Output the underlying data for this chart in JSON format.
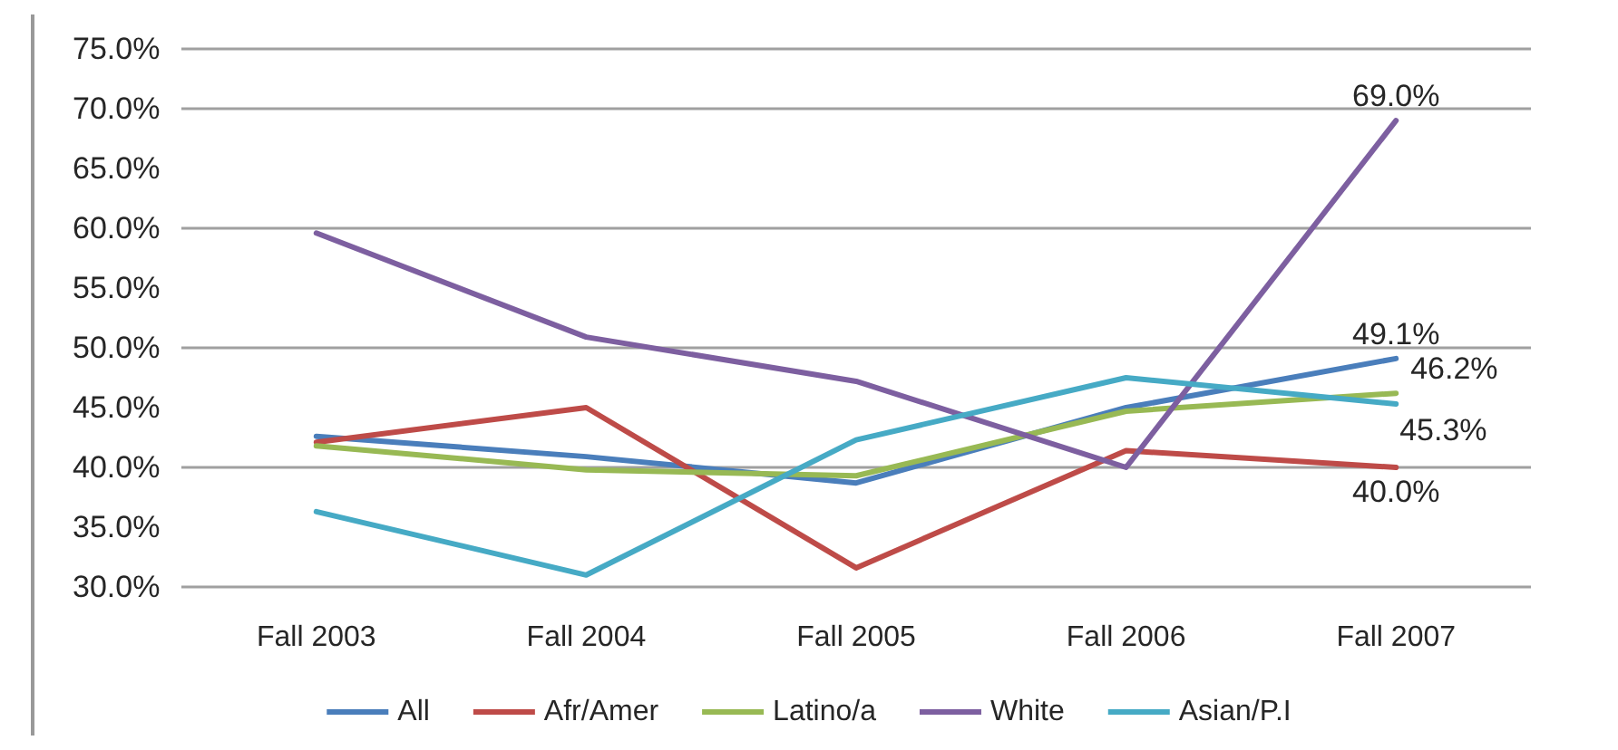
{
  "chart_data": {
    "type": "line",
    "categories": [
      "Fall 2003",
      "Fall 2004",
      "Fall 2005",
      "Fall 2006",
      "Fall 2007"
    ],
    "series": [
      {
        "name": "All",
        "color": "#4a7ebb",
        "values": [
          42.6,
          40.9,
          38.7,
          45.0,
          49.1
        ],
        "value_labels": [
          null,
          null,
          null,
          null,
          "49.1%"
        ]
      },
      {
        "name": "Afr/Amer",
        "color": "#be4b48",
        "values": [
          42.1,
          45.0,
          31.6,
          41.4,
          40.0
        ],
        "value_labels": [
          null,
          null,
          null,
          null,
          "40.0%"
        ]
      },
      {
        "name": "Latino/a",
        "color": "#98b954",
        "values": [
          41.8,
          39.8,
          39.3,
          44.7,
          46.2
        ],
        "value_labels": [
          null,
          null,
          null,
          null,
          "46.2%"
        ]
      },
      {
        "name": "White",
        "color": "#7d5fa0",
        "values": [
          59.6,
          50.9,
          47.2,
          40.0,
          69.0
        ],
        "value_labels": [
          null,
          null,
          null,
          null,
          "69.0%"
        ]
      },
      {
        "name": "Asian/P.I",
        "color": "#46aac5",
        "values": [
          36.3,
          31.0,
          42.3,
          47.5,
          45.3
        ],
        "value_labels": [
          null,
          null,
          null,
          null,
          "45.3%"
        ]
      }
    ],
    "ylim": [
      30,
      75
    ],
    "yticks": [
      {
        "value": 30,
        "label": "30.0%"
      },
      {
        "value": 35,
        "label": "35.0%"
      },
      {
        "value": 40,
        "label": "40.0%"
      },
      {
        "value": 45,
        "label": "45.0%"
      },
      {
        "value": 50,
        "label": "50.0%"
      },
      {
        "value": 55,
        "label": "55.0%"
      },
      {
        "value": 60,
        "label": "60.0%"
      },
      {
        "value": 65,
        "label": "65.0%"
      },
      {
        "value": 70,
        "label": "70.0%"
      },
      {
        "value": 75,
        "label": "75.0%"
      }
    ],
    "grid": "y",
    "legend": "bottom",
    "marker": "none",
    "line_style": "solid"
  }
}
